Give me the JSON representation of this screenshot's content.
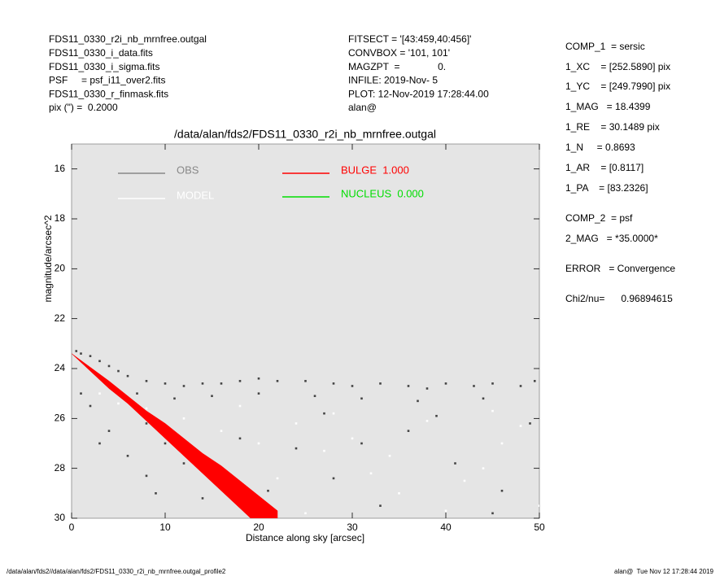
{
  "header": {
    "left": [
      "FDS11_0330_r2i_nb_mrnfree.outgal",
      "FDS11_0330_i_data.fits",
      "FDS11_0330_i_sigma.fits",
      "PSF     = psf_i11_over2.fits",
      "FDS11_0330_r_finmask.fits",
      "pix (\") =  0.2000"
    ],
    "middle": [
      "FITSECT = '[43:459,40:456]'",
      "CONVBOX = '101, 101'",
      "MAGZPT  =              0.",
      "INFILE: 2019-Nov- 5",
      "PLOT: 12-Nov-2019 17:28:44.00",
      "alan@"
    ]
  },
  "parameters": [
    "COMP_1  = sersic",
    "1_XC    = [252.5890] pix",
    "1_YC    = [249.7990] pix",
    "1_MAG   = 18.4399",
    "1_RE    = 30.1489 pix",
    "1_N     = 0.8693",
    "1_AR    = [0.8117]",
    "1_PA    = [83.2326]",
    "COMP_2  = psf",
    "2_MAG   = *35.0000*",
    "ERROR   = Convergence",
    "Chi2/nu=      0.96894615"
  ],
  "footer": {
    "left": "/data/alan/fds2//data/alan/fds2/FDS11_0330_r2i_nb_mrnfree.outgal_profile2",
    "right": "alan@  Tue Nov 12 17:28:44 2019"
  },
  "chart_data": {
    "type": "scatter",
    "title": "/data/alan/fds2/FDS11_0330_r2i_nb_mrnfree.outgal",
    "x_label": "Distance along sky [arcsec]",
    "y_label": "magnitude/arcsec^2",
    "xlim": [
      0,
      50
    ],
    "ylim": [
      30,
      15
    ],
    "xticks": [
      0,
      10,
      20,
      30,
      40,
      50
    ],
    "yticks": [
      16,
      18,
      20,
      22,
      24,
      26,
      28,
      30
    ],
    "background": "#e5e5e5",
    "series": [
      {
        "name": "OBS",
        "color": "#444444",
        "legend_color": "#888888",
        "x": [
          0.5,
          1,
          2,
          3,
          4,
          5,
          6,
          8,
          10,
          12,
          14,
          16,
          18,
          20,
          22,
          25,
          28,
          30,
          33,
          36,
          38,
          40,
          43,
          45,
          48,
          49.5,
          3,
          7,
          11,
          15,
          20,
          26,
          31,
          37,
          44,
          2,
          4,
          6,
          8,
          3,
          9,
          12,
          14,
          18,
          24,
          28,
          33,
          36,
          41,
          46,
          49,
          27,
          39,
          21,
          16,
          45,
          31,
          8,
          1,
          10
        ],
        "values": [
          23.3,
          23.4,
          23.5,
          23.7,
          23.9,
          24.1,
          24.3,
          24.5,
          24.6,
          24.7,
          24.6,
          24.6,
          24.5,
          24.4,
          24.5,
          24.5,
          24.6,
          24.7,
          24.6,
          24.7,
          24.8,
          24.6,
          24.7,
          24.6,
          24.7,
          24.5,
          24.3,
          25.0,
          25.2,
          25.1,
          25.0,
          25.1,
          25.2,
          25.3,
          25.2,
          25.5,
          26.5,
          27.5,
          28.3,
          27.0,
          29.0,
          27.8,
          29.2,
          26.8,
          27.2,
          28.4,
          29.5,
          26.5,
          27.8,
          28.9,
          26.2,
          25.8,
          25.9,
          28.9,
          28.0,
          29.8,
          27.0,
          26.2,
          25.0,
          27.0
        ]
      },
      {
        "name": "MODEL",
        "color": "#ffffff",
        "legend_color": "#ffffff",
        "x": [
          3,
          5,
          8,
          12,
          16,
          20,
          24,
          28,
          30,
          34,
          38,
          42,
          46,
          50,
          25,
          35,
          45,
          18,
          22,
          40,
          48,
          32,
          15,
          27,
          44
        ],
        "values": [
          25.0,
          25.4,
          25.6,
          26.0,
          26.5,
          27.0,
          26.2,
          25.8,
          26.8,
          27.5,
          26.1,
          28.5,
          27.0,
          29.5,
          29.8,
          29.0,
          25.7,
          25.5,
          28.4,
          29.7,
          26.3,
          28.2,
          27.8,
          27.3,
          28.0
        ]
      },
      {
        "name": "BULGE  1.000",
        "color": "#ff0000",
        "legend_color": "#ff0000",
        "x": [
          0,
          2,
          4,
          6,
          8,
          10,
          12,
          14,
          16,
          18,
          20,
          22
        ],
        "values": [
          23.4,
          23.95,
          24.5,
          25.1,
          25.7,
          26.2,
          26.8,
          27.4,
          27.9,
          28.5,
          29.1,
          29.7
        ],
        "values_faint": [
          23.4,
          24.1,
          24.8,
          25.4,
          26.1,
          26.8,
          27.5,
          28.2,
          28.9,
          29.6,
          30.3,
          31.0
        ]
      },
      {
        "name": "NUCLEUS  0.000",
        "color": "#00dd00",
        "legend_color": "#00dd00",
        "x": [],
        "values": []
      }
    ]
  }
}
